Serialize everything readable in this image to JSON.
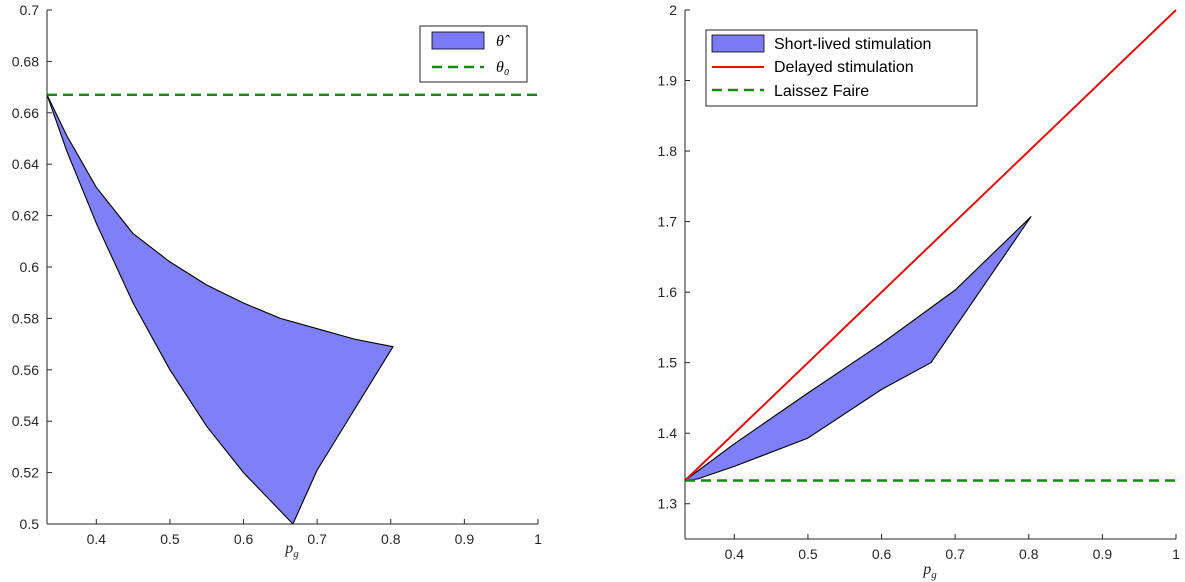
{
  "chart_data": [
    {
      "type": "area",
      "xlabel": "p_g",
      "xlim": [
        0.333,
        1.0
      ],
      "ylim": [
        0.5,
        0.7
      ],
      "x_ticks": [
        "0.4",
        "0.5",
        "0.6",
        "0.7",
        "0.8",
        "0.9",
        "1"
      ],
      "y_ticks": [
        "0.5",
        "0.52",
        "0.54",
        "0.56",
        "0.58",
        "0.6",
        "0.62",
        "0.64",
        "0.66",
        "0.68",
        "0.7"
      ],
      "x_tick_values": [
        0.4,
        0.5,
        0.6,
        0.7,
        0.8,
        0.9,
        1.0
      ],
      "y_tick_values": [
        0.5,
        0.52,
        0.54,
        0.56,
        0.58,
        0.6,
        0.62,
        0.64,
        0.66,
        0.68,
        0.7
      ],
      "legend_placement": "top-right",
      "series": [
        {
          "name": "θ̂",
          "kind": "fill",
          "color": "#7b7bf7",
          "x": [
            0.333,
            0.36,
            0.4,
            0.45,
            0.5,
            0.55,
            0.6,
            0.65,
            0.7,
            0.75,
            0.803,
            0.7,
            0.667,
            0.6,
            0.55,
            0.5,
            0.45,
            0.4,
            0.36,
            0.333
          ],
          "y": [
            0.667,
            0.651,
            0.631,
            0.613,
            0.602,
            0.593,
            0.586,
            0.58,
            0.576,
            0.572,
            0.569,
            0.521,
            0.5,
            0.52,
            0.538,
            0.56,
            0.586,
            0.617,
            0.645,
            0.667
          ]
        },
        {
          "name": "θ₀",
          "kind": "line",
          "dash": "dashed",
          "color": "#138a13",
          "x": [
            0.333,
            1.0
          ],
          "y": [
            0.667,
            0.667
          ]
        }
      ]
    },
    {
      "type": "area",
      "xlabel": "p_g",
      "xlim": [
        0.333,
        1.0
      ],
      "ylim": [
        1.25,
        2.0
      ],
      "x_ticks": [
        "0.4",
        "0.5",
        "0.6",
        "0.7",
        "0.8",
        "0.9",
        "1"
      ],
      "y_ticks": [
        "1.3",
        "1.4",
        "1.5",
        "1.6",
        "1.7",
        "1.8",
        "1.9",
        "2"
      ],
      "x_tick_values": [
        0.4,
        0.5,
        0.6,
        0.7,
        0.8,
        0.9,
        1.0
      ],
      "y_tick_values": [
        1.3,
        1.4,
        1.5,
        1.6,
        1.7,
        1.8,
        1.9,
        2.0
      ],
      "legend_placement": "top-left",
      "series": [
        {
          "name": "Short-lived stimulation",
          "kind": "fill",
          "color": "#7b7bf7",
          "x": [
            0.333,
            0.4,
            0.5,
            0.6,
            0.7,
            0.803,
            0.667,
            0.6,
            0.5,
            0.4,
            0.35,
            0.333
          ],
          "y": [
            1.333,
            1.385,
            1.457,
            1.527,
            1.603,
            1.707,
            1.5,
            1.462,
            1.393,
            1.353,
            1.335,
            1.333
          ]
        },
        {
          "name": "Delayed stimulation",
          "kind": "line",
          "dash": "solid",
          "color": "#e01010",
          "x": [
            0.333,
            1.0
          ],
          "y": [
            1.333,
            2.0
          ]
        },
        {
          "name": "Laissez Faire",
          "kind": "line",
          "dash": "dashed",
          "color": "#138a13",
          "x": [
            0.333,
            1.0
          ],
          "y": [
            1.333,
            1.333
          ]
        }
      ]
    }
  ]
}
